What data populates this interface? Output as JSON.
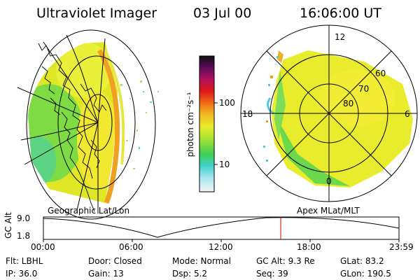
{
  "header": {
    "title": "Ultraviolet Imager",
    "date": "03 Jul 00",
    "time": "16:06:00 UT"
  },
  "colorbar": {
    "unit_label": "photon cm⁻²s⁻¹",
    "ticks": [
      "100",
      "10"
    ]
  },
  "polar_plot": {
    "mlt_labels": [
      "12",
      "18",
      "6",
      "0"
    ],
    "lat_labels": [
      "60",
      "70",
      "80"
    ]
  },
  "orbit": {
    "ylabel": "GC Alt",
    "left_title": "Geographic Lat/Lon",
    "right_title": "Apex MLat/MLT",
    "y_ticks": [
      "9.0",
      "1.8"
    ],
    "x_ticks": [
      "00:00",
      "06:00",
      "12:00",
      "18:00",
      "23:59"
    ],
    "marker_color": "#d00000"
  },
  "info": {
    "flt": "Flt: LBHL",
    "ip": "IP: 36.0",
    "door": "Door: Closed",
    "gain": "Gain: 13",
    "mode": "Mode:  Normal",
    "dsp": "Dsp:     5.2",
    "gcalt": "GC Alt: 9.3 Re",
    "seq": "Seq: 39",
    "glat": "GLat:   83.2",
    "glon": "GLon: 190.5"
  }
}
